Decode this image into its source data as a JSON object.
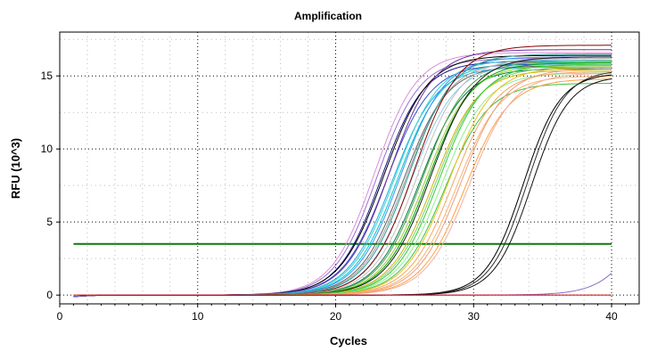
{
  "chart_data": {
    "type": "line",
    "title": "Amplification",
    "xlabel": "Cycles",
    "ylabel": "RFU (10^3)",
    "xlim": [
      0,
      42
    ],
    "ylim": [
      -0.6,
      18
    ],
    "x_ticks": [
      0,
      10,
      20,
      30,
      40
    ],
    "y_ticks": [
      0,
      5,
      10,
      15
    ],
    "grid": true,
    "cycles": [
      1,
      40
    ],
    "threshold": {
      "value": 3.5,
      "color": "#0a7a0a"
    },
    "curve_model": "sigmoid",
    "series": [
      {
        "values": {
          "midpoint": 22.8,
          "plateau": 16.6,
          "slope": 1.55
        },
        "color": "#d98fd9"
      },
      {
        "values": {
          "midpoint": 23.0,
          "plateau": 16.2,
          "slope": 1.55
        },
        "color": "#9a70d0"
      },
      {
        "values": {
          "midpoint": 23.3,
          "plateau": 16.0,
          "slope": 1.55
        },
        "color": "#1a1a8a"
      },
      {
        "values": {
          "midpoint": 23.5,
          "plateau": 16.4,
          "slope": 1.6
        },
        "color": "#000000"
      },
      {
        "values": {
          "midpoint": 23.7,
          "plateau": 15.8,
          "slope": 1.6
        },
        "color": "#3050d0"
      },
      {
        "values": {
          "midpoint": 23.9,
          "plateau": 16.8,
          "slope": 1.6
        },
        "color": "#7030a0"
      },
      {
        "values": {
          "midpoint": 24.1,
          "plateau": 15.6,
          "slope": 1.6
        },
        "color": "#20b0e0"
      },
      {
        "values": {
          "midpoint": 24.3,
          "plateau": 16.1,
          "slope": 1.6
        },
        "color": "#40d0d0"
      },
      {
        "values": {
          "midpoint": 24.5,
          "plateau": 15.9,
          "slope": 1.6
        },
        "color": "#00c8c8"
      },
      {
        "values": {
          "midpoint": 24.7,
          "plateau": 16.3,
          "slope": 1.6
        },
        "color": "#4090ff"
      },
      {
        "values": {
          "midpoint": 24.9,
          "plateau": 15.7,
          "slope": 1.6
        },
        "color": "#606060"
      },
      {
        "values": {
          "midpoint": 25.1,
          "plateau": 16.0,
          "slope": 1.6
        },
        "color": "#a0a0a0"
      },
      {
        "values": {
          "midpoint": 25.3,
          "plateau": 16.5,
          "slope": 1.6
        },
        "color": "#2a9d8f"
      },
      {
        "values": {
          "midpoint": 25.5,
          "plateau": 15.8,
          "slope": 1.6
        },
        "color": "#87ceeb"
      },
      {
        "values": {
          "midpoint": 25.7,
          "plateau": 17.1,
          "slope": 1.6
        },
        "color": "#8b0000"
      },
      {
        "values": {
          "midpoint": 25.9,
          "plateau": 16.2,
          "slope": 1.6
        },
        "color": "#c0c0c0"
      },
      {
        "values": {
          "midpoint": 26.1,
          "plateau": 15.5,
          "slope": 1.6
        },
        "color": "#007a3d"
      },
      {
        "values": {
          "midpoint": 26.3,
          "plateau": 16.0,
          "slope": 1.6
        },
        "color": "#50a050"
      },
      {
        "values": {
          "midpoint": 26.5,
          "plateau": 15.7,
          "slope": 1.6
        },
        "color": "#9acd32"
      },
      {
        "values": {
          "midpoint": 26.7,
          "plateau": 15.9,
          "slope": 1.6
        },
        "color": "#00a000"
      },
      {
        "values": {
          "midpoint": 26.9,
          "plateau": 16.3,
          "slope": 1.6
        },
        "color": "#1a1a1a"
      },
      {
        "values": {
          "midpoint": 27.1,
          "plateau": 15.4,
          "slope": 1.6
        },
        "color": "#c8b400"
      },
      {
        "values": {
          "midpoint": 27.3,
          "plateau": 15.6,
          "slope": 1.6
        },
        "color": "#7ad07a"
      },
      {
        "values": {
          "midpoint": 27.5,
          "plateau": 15.8,
          "slope": 1.6
        },
        "color": "#32cd32"
      },
      {
        "values": {
          "midpoint": 27.7,
          "plateau": 15.2,
          "slope": 1.6
        },
        "color": "#90ee90"
      },
      {
        "values": {
          "midpoint": 27.9,
          "plateau": 14.5,
          "slope": 1.6
        },
        "color": "#40c040"
      },
      {
        "values": {
          "midpoint": 28.2,
          "plateau": 15.6,
          "slope": 1.6
        },
        "color": "#f0c020"
      },
      {
        "values": {
          "midpoint": 28.5,
          "plateau": 15.3,
          "slope": 1.6
        },
        "color": "#f4a460"
      },
      {
        "values": {
          "midpoint": 28.8,
          "plateau": 15.0,
          "slope": 1.6
        },
        "color": "#ffb070"
      },
      {
        "values": {
          "midpoint": 29.1,
          "plateau": 15.5,
          "slope": 1.6
        },
        "color": "#e8a080"
      },
      {
        "values": {
          "midpoint": 29.4,
          "plateau": 14.8,
          "slope": 1.6
        },
        "color": "#ffa040"
      },
      {
        "values": {
          "midpoint": 29.7,
          "plateau": 15.2,
          "slope": 1.6
        },
        "color": "#f0b0a0"
      },
      {
        "values": {
          "midpoint": 33.6,
          "plateau": 15.2,
          "slope": 1.35
        },
        "color": "#000000"
      },
      {
        "values": {
          "midpoint": 33.9,
          "plateau": 15.4,
          "slope": 1.35
        },
        "color": "#303030"
      },
      {
        "values": {
          "midpoint": 34.2,
          "plateau": 15.0,
          "slope": 1.35
        },
        "color": "#101010"
      },
      {
        "values": {
          "midpoint": 43.5,
          "plateau": 16.0,
          "slope": 1.55
        },
        "color": "#8a6cc8"
      },
      {
        "values": {
          "midpoint": null,
          "plateau": 0,
          "slope": null
        },
        "color": "#d00000"
      }
    ]
  }
}
